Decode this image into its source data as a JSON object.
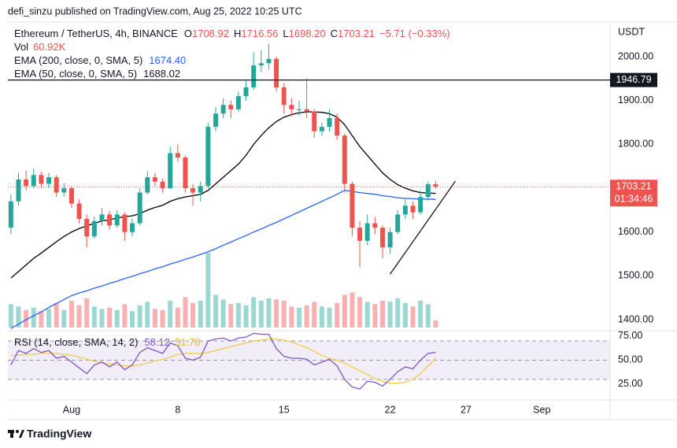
{
  "header": "defi_sinzu published on TradingView.com, Aug 25, 2022 10:25 UTC",
  "footer": "TradingView",
  "chart_data": {
    "type": "candlestick",
    "symbol": "Ethereum / TetherUS, 4h, BINANCE",
    "legend_ohlc": [
      {
        "label": "O",
        "value": "1708.92"
      },
      {
        "label": "H",
        "value": "1716.56"
      },
      {
        "label": "L",
        "value": "1698.20"
      },
      {
        "label": "C",
        "value": "1703.21"
      }
    ],
    "change": "−5.71 (−0.33%)",
    "volume_label": "Vol",
    "volume_value": "60.92K",
    "currency": "USDT",
    "up_color": "#26a69a",
    "down_color": "#ef5350",
    "xlim": [
      -3.2,
      36.5
    ],
    "xticks": [
      {
        "value": 1,
        "label": "Aug"
      },
      {
        "value": 8,
        "label": "8"
      },
      {
        "value": 15,
        "label": "15"
      },
      {
        "value": 22,
        "label": "22"
      },
      {
        "value": 27,
        "label": "27"
      },
      {
        "value": 32,
        "label": "Sep"
      }
    ],
    "ylim": [
      1375,
      2079
    ],
    "yticks": [
      {
        "value": 1400,
        "label": "1400.00"
      },
      {
        "value": 1500,
        "label": "1500.00"
      },
      {
        "value": 1600,
        "label": "1600.00"
      },
      {
        "value": 1700,
        "label": "1700.00"
      },
      {
        "value": 1800,
        "label": "1800.00"
      },
      {
        "value": 1900,
        "label": "1900.00"
      },
      {
        "value": 2000,
        "label": "2000.00"
      }
    ],
    "x": [
      -3,
      -2.5,
      -2,
      -1.5,
      -1,
      -0.5,
      0,
      0.5,
      1,
      1.5,
      2,
      2.5,
      3,
      3.5,
      4,
      4.5,
      5,
      5.5,
      6,
      6.5,
      7,
      7.5,
      8,
      8.5,
      9,
      9.5,
      10,
      10.5,
      11,
      11.5,
      12,
      12.5,
      13,
      13.5,
      14,
      14.5,
      15,
      15.5,
      16,
      16.5,
      17,
      17.5,
      18,
      18.5,
      19,
      19.5,
      20,
      20.5,
      21,
      21.5,
      22,
      22.5,
      23,
      23.5,
      24,
      24.5,
      25
    ],
    "candles": [
      [
        1610,
        1685,
        1595,
        1670
      ],
      [
        1670,
        1735,
        1660,
        1720
      ],
      [
        1720,
        1740,
        1695,
        1705
      ],
      [
        1705,
        1745,
        1700,
        1730
      ],
      [
        1730,
        1738,
        1700,
        1710
      ],
      [
        1710,
        1735,
        1700,
        1725
      ],
      [
        1725,
        1730,
        1680,
        1690
      ],
      [
        1690,
        1712,
        1680,
        1700
      ],
      [
        1700,
        1705,
        1655,
        1665
      ],
      [
        1665,
        1675,
        1620,
        1630
      ],
      [
        1630,
        1640,
        1565,
        1590
      ],
      [
        1590,
        1635,
        1585,
        1625
      ],
      [
        1625,
        1655,
        1615,
        1640
      ],
      [
        1640,
        1648,
        1605,
        1615
      ],
      [
        1615,
        1650,
        1610,
        1640
      ],
      [
        1640,
        1645,
        1580,
        1600
      ],
      [
        1600,
        1630,
        1590,
        1620
      ],
      [
        1620,
        1700,
        1615,
        1690
      ],
      [
        1690,
        1740,
        1685,
        1725
      ],
      [
        1725,
        1735,
        1705,
        1715
      ],
      [
        1715,
        1722,
        1690,
        1700
      ],
      [
        1700,
        1795,
        1698,
        1780
      ],
      [
        1780,
        1800,
        1760,
        1770
      ],
      [
        1770,
        1775,
        1690,
        1700
      ],
      [
        1700,
        1710,
        1660,
        1690
      ],
      [
        1690,
        1715,
        1670,
        1705
      ],
      [
        1705,
        1850,
        1700,
        1840
      ],
      [
        1840,
        1885,
        1830,
        1870
      ],
      [
        1870,
        1905,
        1860,
        1890
      ],
      [
        1890,
        1900,
        1860,
        1880
      ],
      [
        1880,
        1920,
        1875,
        1910
      ],
      [
        1910,
        1945,
        1900,
        1930
      ],
      [
        1930,
        2010,
        1925,
        1980
      ],
      [
        1980,
        2015,
        1965,
        1985
      ],
      [
        1985,
        2030,
        1970,
        1995
      ],
      [
        1995,
        2000,
        1920,
        1930
      ],
      [
        1930,
        1940,
        1870,
        1890
      ],
      [
        1890,
        1905,
        1865,
        1880
      ],
      [
        1880,
        1900,
        1865,
        1880
      ],
      [
        1880,
        1950,
        1860,
        1875
      ],
      [
        1875,
        1880,
        1815,
        1830
      ],
      [
        1830,
        1850,
        1820,
        1840
      ],
      [
        1840,
        1880,
        1830,
        1860
      ],
      [
        1860,
        1870,
        1810,
        1820
      ],
      [
        1820,
        1825,
        1690,
        1710
      ],
      [
        1710,
        1715,
        1590,
        1610
      ],
      [
        1610,
        1625,
        1520,
        1580
      ],
      [
        1580,
        1640,
        1570,
        1620
      ],
      [
        1620,
        1635,
        1595,
        1610
      ],
      [
        1610,
        1615,
        1540,
        1565
      ],
      [
        1565,
        1610,
        1550,
        1600
      ],
      [
        1600,
        1650,
        1595,
        1640
      ],
      [
        1640,
        1675,
        1630,
        1660
      ],
      [
        1660,
        1670,
        1630,
        1645
      ],
      [
        1645,
        1695,
        1640,
        1680
      ],
      [
        1680,
        1715,
        1672,
        1708.92
      ],
      [
        1708.92,
        1716.56,
        1698.2,
        1703.21
      ]
    ],
    "volume": [
      200,
      180,
      150,
      170,
      140,
      160,
      210,
      150,
      230,
      190,
      250,
      180,
      160,
      170,
      150,
      200,
      140,
      190,
      220,
      160,
      150,
      230,
      170,
      260,
      210,
      230,
      640,
      280,
      240,
      200,
      210,
      190,
      260,
      230,
      250,
      240,
      230,
      180,
      170,
      190,
      220,
      180,
      170,
      210,
      280,
      300,
      260,
      220,
      200,
      230,
      220,
      250,
      210,
      180,
      230,
      200,
      60.92
    ],
    "series": [
      {
        "name": "EMA (200, close, 0, SMA, 5)",
        "value_label": "1674.40",
        "color": "#2962ff",
        "values": [
          1380,
          1390,
          1400,
          1409,
          1418,
          1428,
          1437,
          1446,
          1455,
          1461,
          1466,
          1472,
          1477,
          1483,
          1488,
          1494,
          1499,
          1505,
          1510,
          1516,
          1521,
          1527,
          1532,
          1538,
          1543,
          1549,
          1555,
          1562,
          1570,
          1577,
          1585,
          1592,
          1600,
          1607,
          1615,
          1622,
          1630,
          1638,
          1646,
          1654,
          1662,
          1670,
          1678,
          1686,
          1695,
          1693,
          1690,
          1688,
          1686,
          1683,
          1681,
          1678,
          1677,
          1676,
          1675,
          1675,
          1674.4
        ]
      },
      {
        "name": "EMA (50, close, 0, SMA, 5)",
        "value_label": "1688.02",
        "color": "#000000",
        "values": [
          1495,
          1510,
          1525,
          1540,
          1552,
          1565,
          1578,
          1590,
          1600,
          1608,
          1614,
          1620,
          1625,
          1628,
          1632,
          1635,
          1637,
          1642,
          1650,
          1656,
          1661,
          1670,
          1676,
          1680,
          1683,
          1686,
          1695,
          1710,
          1725,
          1740,
          1755,
          1775,
          1800,
          1820,
          1838,
          1852,
          1862,
          1868,
          1872,
          1874,
          1874,
          1873,
          1870,
          1862,
          1845,
          1820,
          1795,
          1775,
          1755,
          1735,
          1720,
          1708,
          1700,
          1694,
          1690,
          1689,
          1688.02
        ]
      }
    ],
    "hline": {
      "value": 1946.79
    },
    "last_price": {
      "value": 1703.21,
      "countdown": "01:34:46",
      "color": "#ef5350"
    },
    "trendline": {
      "x": [
        22,
        26.3
      ],
      "y": [
        1504,
        1716
      ]
    },
    "rsi": {
      "name": "RSI (14, close, SMA, 14, 2)",
      "value_label": "58.12",
      "sma_label": "51.78",
      "color": "#7e57c2",
      "sma_color": "#f2c94c",
      "ylim": [
        11,
        80.7
      ],
      "yticks": [
        {
          "value": 75,
          "label": "75.00"
        },
        {
          "value": 50,
          "label": "50.00"
        },
        {
          "value": 25,
          "label": "25.00"
        }
      ],
      "levels": [
        70,
        50,
        30
      ],
      "values": [
        45,
        60,
        57,
        62,
        58,
        60,
        52,
        54,
        48,
        42,
        36,
        45,
        48,
        43,
        48,
        40,
        45,
        58,
        63,
        60,
        57,
        68,
        65,
        52,
        50,
        53,
        70,
        72,
        73,
        70,
        73,
        74,
        78,
        77,
        77,
        62,
        54,
        52,
        52,
        51,
        45,
        48,
        51,
        44,
        30,
        22,
        20,
        28,
        27,
        23,
        30,
        38,
        43,
        41,
        50,
        57,
        58.12
      ],
      "sma": [
        55,
        55,
        56,
        56,
        57,
        57,
        57,
        56,
        55,
        53,
        51,
        49,
        47,
        46,
        45,
        44,
        44,
        45,
        47,
        49,
        51,
        53,
        56,
        57,
        57,
        57,
        58,
        60,
        62,
        64,
        66,
        68,
        70,
        71,
        72,
        72,
        71,
        69,
        66,
        63,
        59,
        55,
        52,
        50,
        47,
        43,
        39,
        35,
        31,
        28,
        26,
        26,
        27,
        30,
        36,
        44,
        51.78
      ]
    }
  }
}
